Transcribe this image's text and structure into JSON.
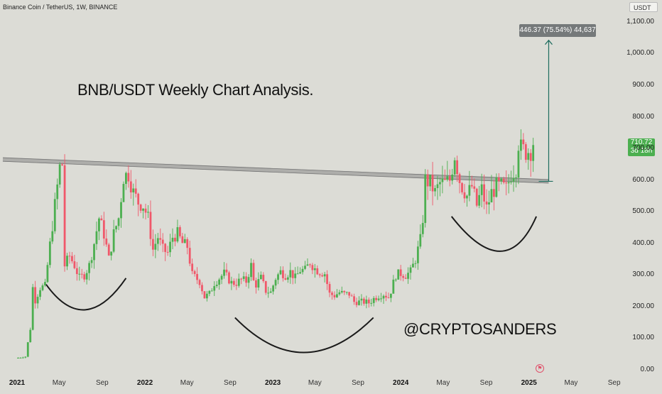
{
  "header": {
    "symbol_title": "Binance Coin / TetherUS, 1W, BINANCE",
    "currency": "USDT"
  },
  "annotations": {
    "title": "BNB/USDT Weekly Chart Analysis.",
    "handle": "@CRYPTOSANDERS",
    "measure": "446.37 (75.54%) 44,637"
  },
  "price_badge": {
    "price": "710.72",
    "countdown": "3d 18h"
  },
  "colors": {
    "up": "#26a69a",
    "down": "#ef5350",
    "candle_up": "#4caf50",
    "candle_down": "#f0586a",
    "background": "#dcdcd6",
    "arrow": "#1f6d5f",
    "trendline": "#8a8a88",
    "logo": "#e0506a"
  },
  "icons": {
    "logo": "tradingview-flag-icon"
  },
  "chart_data": {
    "type": "candlestick",
    "title": "BNB/USDT Weekly Chart Analysis.",
    "xlabel": "",
    "ylabel": "",
    "ylim": [
      0,
      1100
    ],
    "xlim": [
      "2020-12-28",
      "2025-09-20"
    ],
    "y_ticks": [
      "1,100.00",
      "1,000.00",
      "900.00",
      "800.00",
      "700.00",
      "600.00",
      "500.00",
      "400.00",
      "300.00",
      "200.00",
      "100.00",
      "0.00"
    ],
    "x_ticks": [
      {
        "label": "2021",
        "year": true,
        "date": "2021-01-01"
      },
      {
        "label": "May",
        "year": false,
        "date": "2021-05-01"
      },
      {
        "label": "Sep",
        "year": false,
        "date": "2021-09-01"
      },
      {
        "label": "2022",
        "year": true,
        "date": "2022-01-01"
      },
      {
        "label": "May",
        "year": false,
        "date": "2022-05-01"
      },
      {
        "label": "Sep",
        "year": false,
        "date": "2022-09-01"
      },
      {
        "label": "2023",
        "year": true,
        "date": "2023-01-01"
      },
      {
        "label": "May",
        "year": false,
        "date": "2023-05-01"
      },
      {
        "label": "Sep",
        "year": false,
        "date": "2023-09-01"
      },
      {
        "label": "2024",
        "year": true,
        "date": "2024-01-01"
      },
      {
        "label": "May",
        "year": false,
        "date": "2024-05-01"
      },
      {
        "label": "Sep",
        "year": false,
        "date": "2024-09-01"
      },
      {
        "label": "2025",
        "year": true,
        "date": "2025-01-01"
      },
      {
        "label": "May",
        "year": false,
        "date": "2025-05-01"
      },
      {
        "label": "Sep",
        "year": false,
        "date": "2025-09-01"
      }
    ],
    "close_path": [
      [
        "2020-12-28",
        37
      ],
      [
        "2021-01-25",
        42
      ],
      [
        "2021-02-08",
        130
      ],
      [
        "2021-02-15",
        260
      ],
      [
        "2021-02-22",
        220
      ],
      [
        "2021-03-08",
        260
      ],
      [
        "2021-03-22",
        265
      ],
      [
        "2021-04-05",
        395
      ],
      [
        "2021-04-19",
        520
      ],
      [
        "2021-05-03",
        640
      ],
      [
        "2021-05-10",
        650
      ],
      [
        "2021-05-17",
        330
      ],
      [
        "2021-05-31",
        360
      ],
      [
        "2021-06-14",
        330
      ],
      [
        "2021-06-28",
        290
      ],
      [
        "2021-07-12",
        300
      ],
      [
        "2021-07-26",
        330
      ],
      [
        "2021-08-09",
        400
      ],
      [
        "2021-08-23",
        480
      ],
      [
        "2021-09-06",
        430
      ],
      [
        "2021-09-20",
        350
      ],
      [
        "2021-10-04",
        430
      ],
      [
        "2021-10-18",
        480
      ],
      [
        "2021-11-01",
        610
      ],
      [
        "2021-11-15",
        620
      ],
      [
        "2021-11-29",
        560
      ],
      [
        "2021-12-13",
        530
      ],
      [
        "2021-12-27",
        520
      ],
      [
        "2022-01-10",
        480
      ],
      [
        "2022-01-24",
        380
      ],
      [
        "2022-02-07",
        420
      ],
      [
        "2022-02-21",
        380
      ],
      [
        "2022-03-07",
        370
      ],
      [
        "2022-03-21",
        420
      ],
      [
        "2022-04-04",
        430
      ],
      [
        "2022-04-18",
        400
      ],
      [
        "2022-05-02",
        390
      ],
      [
        "2022-05-16",
        300
      ],
      [
        "2022-06-06",
        280
      ],
      [
        "2022-06-20",
        230
      ],
      [
        "2022-07-04",
        240
      ],
      [
        "2022-07-18",
        275
      ],
      [
        "2022-08-01",
        290
      ],
      [
        "2022-08-15",
        305
      ],
      [
        "2022-09-05",
        275
      ],
      [
        "2022-09-19",
        275
      ],
      [
        "2022-10-03",
        285
      ],
      [
        "2022-10-17",
        280
      ],
      [
        "2022-10-31",
        330
      ],
      [
        "2022-11-07",
        280
      ],
      [
        "2022-11-14",
        270
      ],
      [
        "2022-11-28",
        290
      ],
      [
        "2022-12-12",
        250
      ],
      [
        "2022-12-26",
        245
      ],
      [
        "2023-01-09",
        290
      ],
      [
        "2023-01-23",
        310
      ],
      [
        "2023-02-06",
        300
      ],
      [
        "2023-02-20",
        310
      ],
      [
        "2023-03-06",
        290
      ],
      [
        "2023-03-20",
        315
      ],
      [
        "2023-04-03",
        315
      ],
      [
        "2023-04-17",
        340
      ],
      [
        "2023-05-01",
        320
      ],
      [
        "2023-05-15",
        310
      ],
      [
        "2023-05-29",
        305
      ],
      [
        "2023-06-12",
        240
      ],
      [
        "2023-06-26",
        235
      ],
      [
        "2023-07-10",
        245
      ],
      [
        "2023-07-24",
        240
      ],
      [
        "2023-08-07",
        240
      ],
      [
        "2023-08-21",
        215
      ],
      [
        "2023-09-04",
        215
      ],
      [
        "2023-09-18",
        215
      ],
      [
        "2023-10-02",
        212
      ],
      [
        "2023-10-16",
        225
      ],
      [
        "2023-10-30",
        235
      ],
      [
        "2023-11-13",
        240
      ],
      [
        "2023-11-27",
        230
      ],
      [
        "2023-12-04",
        250
      ],
      [
        "2023-12-18",
        300
      ],
      [
        "2024-01-01",
        305
      ],
      [
        "2024-01-15",
        300
      ],
      [
        "2024-01-29",
        310
      ],
      [
        "2024-02-12",
        350
      ],
      [
        "2024-02-26",
        410
      ],
      [
        "2024-03-04",
        480
      ],
      [
        "2024-03-11",
        600
      ],
      [
        "2024-03-25",
        590
      ],
      [
        "2024-04-08",
        560
      ],
      [
        "2024-04-22",
        590
      ],
      [
        "2024-05-06",
        590
      ],
      [
        "2024-05-20",
        600
      ],
      [
        "2024-06-03",
        680
      ],
      [
        "2024-06-17",
        600
      ],
      [
        "2024-06-24",
        580
      ],
      [
        "2024-07-08",
        550
      ],
      [
        "2024-07-22",
        580
      ],
      [
        "2024-08-05",
        520
      ],
      [
        "2024-08-19",
        570
      ],
      [
        "2024-09-02",
        510
      ],
      [
        "2024-09-16",
        560
      ],
      [
        "2024-09-30",
        580
      ],
      [
        "2024-10-14",
        580
      ],
      [
        "2024-10-28",
        570
      ],
      [
        "2024-11-11",
        620
      ],
      [
        "2024-11-25",
        640
      ],
      [
        "2024-12-02",
        720
      ],
      [
        "2024-12-09",
        700
      ],
      [
        "2024-12-23",
        690
      ],
      [
        "2025-01-06",
        695
      ],
      [
        "2025-01-13",
        710.72
      ]
    ],
    "trendline": [
      [
        "2021-01-01",
        665
      ],
      [
        "2025-02-10",
        596
      ]
    ],
    "measure": {
      "from": 596,
      "to": 1042,
      "date": "2025-02-10",
      "label": "446.37 (75.54%) 44,637"
    },
    "arcs": [
      {
        "points": [
          [
            "2021-03-25",
            270
          ],
          [
            "2021-07-15",
            190
          ],
          [
            "2021-11-08",
            290
          ]
        ]
      },
      {
        "points": [
          [
            "2022-09-15",
            165
          ],
          [
            "2023-03-30",
            55
          ],
          [
            "2023-10-15",
            165
          ]
        ]
      },
      {
        "points": [
          [
            "2024-05-25",
            485
          ],
          [
            "2024-10-10",
            375
          ],
          [
            "2025-01-22",
            485
          ]
        ]
      }
    ],
    "last_price": 710.72,
    "legend": "none",
    "grid": false
  }
}
